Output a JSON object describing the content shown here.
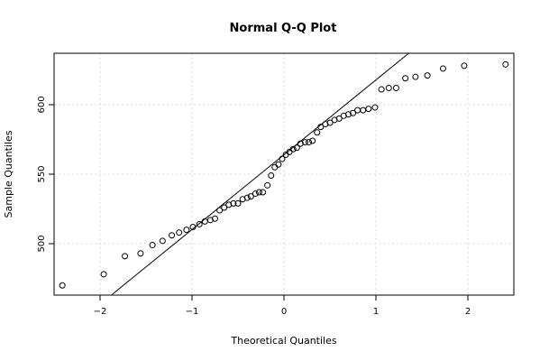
{
  "chart_data": {
    "type": "scatter",
    "title": "Normal Q-Q Plot",
    "xlabel": "Theoretical Quantiles",
    "ylabel": "Sample Quantiles",
    "xlim": [
      -2.5,
      2.5
    ],
    "ylim": [
      463,
      637
    ],
    "xticks": [
      -2,
      -1,
      0,
      1,
      2
    ],
    "xtick_labels": [
      "−2",
      "−1",
      "0",
      "1",
      "2"
    ],
    "yticks": [
      500,
      550,
      600
    ],
    "ytick_labels": [
      "500",
      "550",
      "600"
    ],
    "grid": true,
    "reference_line": {
      "intercept": 564.0,
      "slope": 53.8
    },
    "points": {
      "x": [
        -2.41,
        -1.96,
        -1.73,
        -1.56,
        -1.43,
        -1.32,
        -1.22,
        -1.14,
        -1.06,
        -0.99,
        -0.92,
        -0.86,
        -0.8,
        -0.75,
        -0.7,
        -0.65,
        -0.6,
        -0.55,
        -0.5,
        -0.45,
        -0.4,
        -0.36,
        -0.31,
        -0.27,
        -0.23,
        -0.18,
        -0.14,
        -0.1,
        -0.06,
        -0.02,
        0.02,
        0.06,
        0.1,
        0.14,
        0.18,
        0.23,
        0.27,
        0.31,
        0.36,
        0.4,
        0.45,
        0.5,
        0.55,
        0.6,
        0.65,
        0.7,
        0.75,
        0.8,
        0.86,
        0.92,
        0.99,
        1.06,
        1.14,
        1.22,
        1.32,
        1.43,
        1.56,
        1.73,
        1.96,
        2.41
      ],
      "y": [
        470,
        478,
        491,
        493,
        499,
        502,
        506,
        508,
        510,
        512,
        514,
        516,
        517,
        518,
        524,
        526,
        528,
        529,
        529,
        532,
        533,
        534,
        536,
        537,
        537,
        542,
        549,
        555,
        557,
        561,
        564,
        566,
        568,
        569,
        572,
        573,
        573,
        574,
        580,
        584,
        586,
        587,
        589,
        590,
        592,
        593,
        594,
        596,
        596,
        597,
        598,
        611,
        612,
        612,
        619,
        620,
        621,
        626,
        628,
        629
      ]
    }
  }
}
